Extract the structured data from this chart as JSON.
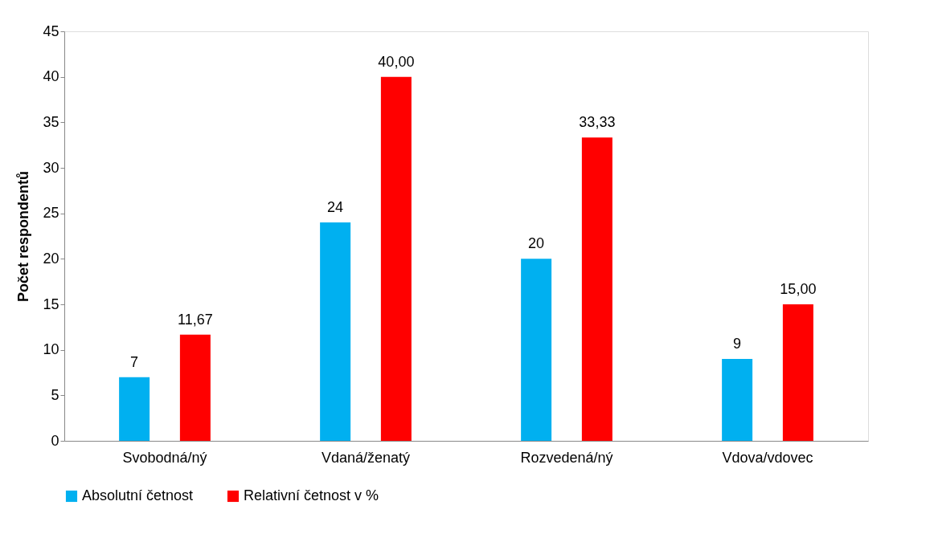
{
  "chart_data": {
    "type": "bar",
    "ylabel": "Počet respondentů",
    "categories": [
      "Svobodná/ný",
      "Vdaná/ženatý",
      "Rozvedená/ný",
      "Vdova/vdovec"
    ],
    "series": [
      {
        "name": "Absolutní četnost",
        "color": "#00b0f0",
        "values": [
          7,
          24,
          20,
          9
        ],
        "value_labels": [
          "7",
          "24",
          "20",
          "9"
        ]
      },
      {
        "name": "Relativní četnost v %",
        "color": "#ff0000",
        "values": [
          11.67,
          40,
          33.33,
          15
        ],
        "value_labels": [
          "11,67",
          "40,00",
          "33,33",
          "15,00"
        ]
      }
    ],
    "ylim": [
      0,
      45
    ],
    "yticks": [
      0,
      5,
      10,
      15,
      20,
      25,
      30,
      35,
      40,
      45
    ],
    "grid": false,
    "legend": "bottom"
  }
}
